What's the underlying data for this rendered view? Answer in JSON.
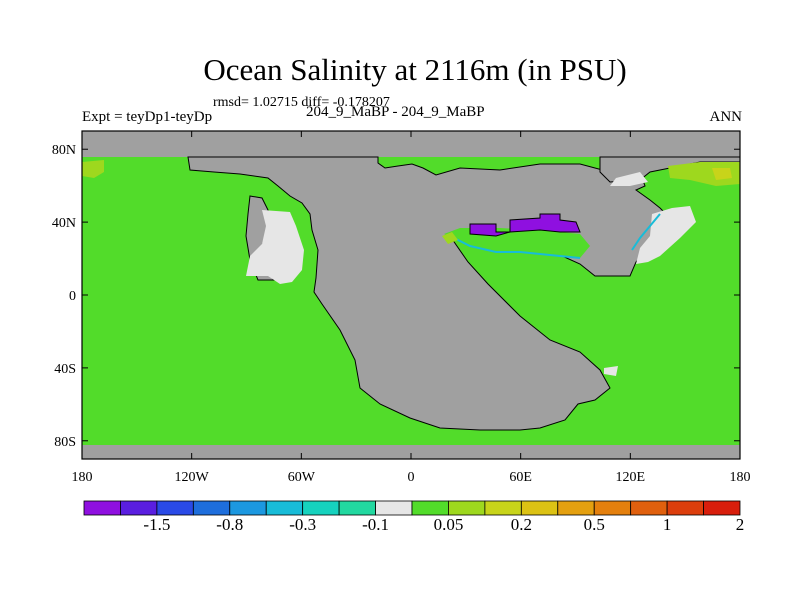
{
  "chart_data": {
    "type": "heatmap",
    "title": "Ocean Salinity at 2116m (in PSU)",
    "stats_line": "rmsd= 1.02715 diff= -0.178207",
    "experiment_label": "Expt = teyDp1-teyDp",
    "subtitle": "204_9_MaBP - 204_9_MaBP",
    "season": "ANN",
    "x_ticks": [
      "180",
      "120W",
      "60W",
      "0",
      "60E",
      "120E",
      "180"
    ],
    "x_tick_values": [
      -180,
      -120,
      -60,
      0,
      60,
      120,
      180
    ],
    "y_ticks": [
      "80N",
      "40N",
      "0",
      "40S",
      "80S"
    ],
    "y_tick_values": [
      80,
      40,
      0,
      -40,
      -80
    ],
    "xlim": [
      -180,
      180
    ],
    "ylim": [
      -90,
      90
    ],
    "dominant_level": "0.05 to 0.2",
    "colorbar": {
      "labels": [
        "-1.5",
        "-0.8",
        "-0.3",
        "-0.1",
        "0.05",
        "0.2",
        "0.5",
        "1",
        "2"
      ],
      "colors": [
        "#8f10e0",
        "#5a1ee0",
        "#2a4ae6",
        "#1e6edc",
        "#1c98e0",
        "#18bcd8",
        "#16d2be",
        "#22d8a0",
        "#e6e6e6",
        "#52dc2a",
        "#9ed81e",
        "#c8d41a",
        "#dcc214",
        "#e4a010",
        "#e4800e",
        "#e0600e",
        "#dc3e0c",
        "#d81e0c"
      ]
    },
    "colors": {
      "land": "#a0a0a0",
      "ocean_main": "#52dc2a",
      "near_zero": "#e6e6e6",
      "negative_strong": "#8f10e0",
      "positive_small": "#9ed81e",
      "positive_mid": "#c8d41a"
    }
  }
}
